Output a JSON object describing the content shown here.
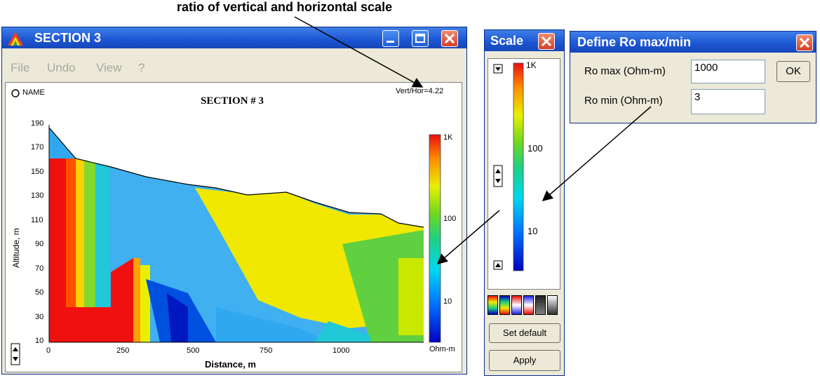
{
  "annotation": {
    "label": "ratio of vertical and horizontal scale"
  },
  "section_window": {
    "title": "SECTION 3",
    "menu": [
      "File",
      "Undo",
      "View",
      "?"
    ],
    "name_label": "NAME",
    "plot_title": "SECTION # 3",
    "ratio_label": "Vert/Hor=4.22",
    "ylabel": "Altitude, m",
    "xlabel": "Distance, m",
    "yticks": [
      "190",
      "170",
      "150",
      "130",
      "110",
      "90",
      "70",
      "50",
      "30",
      "10"
    ],
    "xticks": [
      "0",
      "250",
      "500",
      "750",
      "1000"
    ],
    "colorbar_labels": [
      "1K",
      "100",
      "10",
      "Ohm-m"
    ]
  },
  "scale_window": {
    "title": "Scale",
    "colorbar_labels": [
      "1K",
      "100",
      "10"
    ],
    "set_default_label": "Set default",
    "apply_label": "Apply"
  },
  "define_window": {
    "title": "Define Ro max/min",
    "ro_max_label": "Ro max (Ohm-m)",
    "ro_max_value": "1000",
    "ro_min_label": "Ro min  (Ohm-m)",
    "ro_min_value": "3",
    "ok_label": "OK"
  },
  "colors": {
    "titlebar": "#1b55d2",
    "window_bg": "#ece9d8",
    "close": "#d0422a"
  }
}
